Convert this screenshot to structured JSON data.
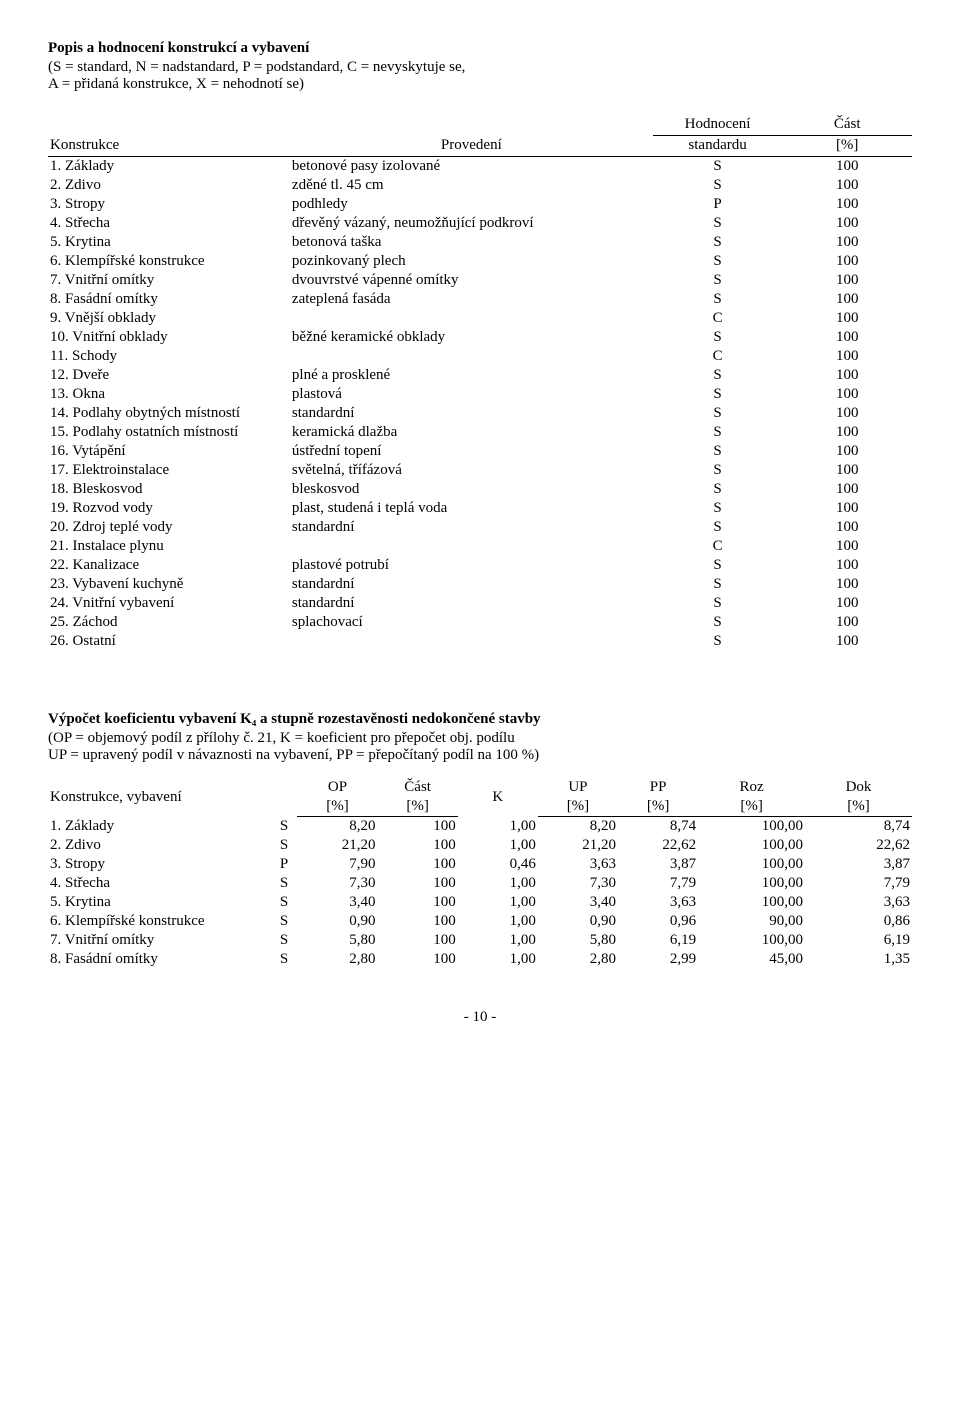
{
  "header": {
    "title": "Popis a hodnocení konstrukcí a vybavení",
    "legend1": "(S = standard, N = nadstandard, P = podstandard, C = nevyskytuje se,",
    "legend2": "A = přidaná konstrukce, X = nehodnotí se)"
  },
  "table1": {
    "head": {
      "konstrukce": "Konstrukce",
      "provedeni": "Provedení",
      "hodnoceni1": "Hodnocení",
      "hodnoceni2": "standardu",
      "cast1": "Část",
      "cast2": "[%]"
    },
    "rows": [
      {
        "konstrukce": "1. Základy",
        "provedeni": "betonové pasy izolované",
        "hodnoceni": "S",
        "cast": "100"
      },
      {
        "konstrukce": "2. Zdivo",
        "provedeni": "zděné tl. 45 cm",
        "hodnoceni": "S",
        "cast": "100"
      },
      {
        "konstrukce": "3. Stropy",
        "provedeni": "podhledy",
        "hodnoceni": "P",
        "cast": "100"
      },
      {
        "konstrukce": "4. Střecha",
        "provedeni": "dřevěný vázaný, neumožňující podkroví",
        "hodnoceni": "S",
        "cast": "100"
      },
      {
        "konstrukce": "5. Krytina",
        "provedeni": "betonová taška",
        "hodnoceni": "S",
        "cast": "100"
      },
      {
        "konstrukce": "6. Klempířské konstrukce",
        "provedeni": "pozinkovaný plech",
        "hodnoceni": "S",
        "cast": "100"
      },
      {
        "konstrukce": "7. Vnitřní omítky",
        "provedeni": "dvouvrstvé vápenné omítky",
        "hodnoceni": "S",
        "cast": "100"
      },
      {
        "konstrukce": "8. Fasádní omítky",
        "provedeni": "zateplená fasáda",
        "hodnoceni": "S",
        "cast": "100"
      },
      {
        "konstrukce": "9. Vnější obklady",
        "provedeni": "",
        "hodnoceni": "C",
        "cast": "100"
      },
      {
        "konstrukce": "10. Vnitřní obklady",
        "provedeni": "běžné keramické obklady",
        "hodnoceni": "S",
        "cast": "100"
      },
      {
        "konstrukce": "11. Schody",
        "provedeni": "",
        "hodnoceni": "C",
        "cast": "100"
      },
      {
        "konstrukce": "12. Dveře",
        "provedeni": "plné a prosklené",
        "hodnoceni": "S",
        "cast": "100"
      },
      {
        "konstrukce": "13. Okna",
        "provedeni": "plastová",
        "hodnoceni": "S",
        "cast": "100"
      },
      {
        "konstrukce": "14. Podlahy obytných místností",
        "provedeni": "standardní",
        "hodnoceni": "S",
        "cast": "100"
      },
      {
        "konstrukce": "15. Podlahy ostatních místností",
        "provedeni": "keramická dlažba",
        "hodnoceni": "S",
        "cast": "100"
      },
      {
        "konstrukce": "16. Vytápění",
        "provedeni": "ústřední topení",
        "hodnoceni": "S",
        "cast": "100"
      },
      {
        "konstrukce": "17. Elektroinstalace",
        "provedeni": "světelná, třífázová",
        "hodnoceni": "S",
        "cast": "100"
      },
      {
        "konstrukce": "18. Bleskosvod",
        "provedeni": "bleskosvod",
        "hodnoceni": "S",
        "cast": "100"
      },
      {
        "konstrukce": "19. Rozvod vody",
        "provedeni": "plast, studená i teplá voda",
        "hodnoceni": "S",
        "cast": "100"
      },
      {
        "konstrukce": "20. Zdroj teplé vody",
        "provedeni": "standardní",
        "hodnoceni": "S",
        "cast": "100"
      },
      {
        "konstrukce": "21. Instalace plynu",
        "provedeni": "",
        "hodnoceni": "C",
        "cast": "100"
      },
      {
        "konstrukce": "22. Kanalizace",
        "provedeni": "plastové potrubí",
        "hodnoceni": "S",
        "cast": "100"
      },
      {
        "konstrukce": "23. Vybavení kuchyně",
        "provedeni": "standardní",
        "hodnoceni": "S",
        "cast": "100"
      },
      {
        "konstrukce": "24. Vnitřní vybavení",
        "provedeni": "standardní",
        "hodnoceni": "S",
        "cast": "100"
      },
      {
        "konstrukce": "25. Záchod",
        "provedeni": "splachovací",
        "hodnoceni": "S",
        "cast": "100"
      },
      {
        "konstrukce": "26. Ostatní",
        "provedeni": "",
        "hodnoceni": "S",
        "cast": "100"
      }
    ]
  },
  "section2": {
    "title": "Výpočet koeficientu vybavení K₄ a stupně rozestavěnosti nedokončené stavby",
    "line1": "(OP = objemový podíl z přílohy č. 21, K = koeficient pro přepočet obj. podílu",
    "line2": "UP = upravený podíl v návaznosti na vybavení, PP = přepočítaný podíl na 100 %)"
  },
  "table2": {
    "head": {
      "name": "Konstrukce, vybavení",
      "op1": "OP",
      "op2": "[%]",
      "cast1": "Část",
      "cast2": "[%]",
      "k": "K",
      "up1": "UP",
      "up2": "[%]",
      "pp1": "PP",
      "pp2": "[%]",
      "roz1": "Roz",
      "roz2": "[%]",
      "dok1": "Dok",
      "dok2": "[%]"
    },
    "rows": [
      {
        "name": "1. Základy",
        "s": "S",
        "op": "8,20",
        "cast": "100",
        "k": "1,00",
        "up": "8,20",
        "pp": "8,74",
        "roz": "100,00",
        "dok": "8,74"
      },
      {
        "name": "2. Zdivo",
        "s": "S",
        "op": "21,20",
        "cast": "100",
        "k": "1,00",
        "up": "21,20",
        "pp": "22,62",
        "roz": "100,00",
        "dok": "22,62"
      },
      {
        "name": "3. Stropy",
        "s": "P",
        "op": "7,90",
        "cast": "100",
        "k": "0,46",
        "up": "3,63",
        "pp": "3,87",
        "roz": "100,00",
        "dok": "3,87"
      },
      {
        "name": "4. Střecha",
        "s": "S",
        "op": "7,30",
        "cast": "100",
        "k": "1,00",
        "up": "7,30",
        "pp": "7,79",
        "roz": "100,00",
        "dok": "7,79"
      },
      {
        "name": "5. Krytina",
        "s": "S",
        "op": "3,40",
        "cast": "100",
        "k": "1,00",
        "up": "3,40",
        "pp": "3,63",
        "roz": "100,00",
        "dok": "3,63"
      },
      {
        "name": "6. Klempířské konstrukce",
        "s": "S",
        "op": "0,90",
        "cast": "100",
        "k": "1,00",
        "up": "0,90",
        "pp": "0,96",
        "roz": "90,00",
        "dok": "0,86"
      },
      {
        "name": "7. Vnitřní omítky",
        "s": "S",
        "op": "5,80",
        "cast": "100",
        "k": "1,00",
        "up": "5,80",
        "pp": "6,19",
        "roz": "100,00",
        "dok": "6,19"
      },
      {
        "name": "8. Fasádní omítky",
        "s": "S",
        "op": "2,80",
        "cast": "100",
        "k": "1,00",
        "up": "2,80",
        "pp": "2,99",
        "roz": "45,00",
        "dok": "1,35"
      }
    ]
  },
  "footer": {
    "page": "- 10 -"
  }
}
